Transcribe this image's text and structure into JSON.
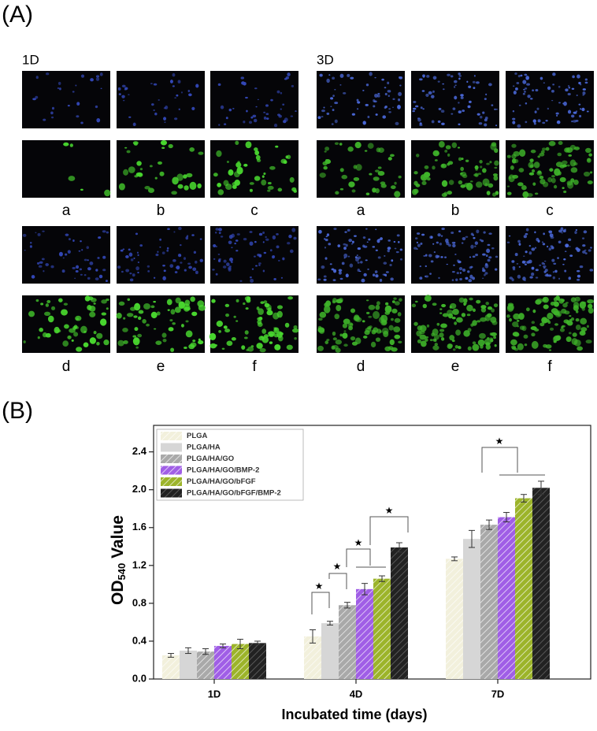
{
  "panel_a": {
    "label": "(A)",
    "groups": [
      {
        "title": "1D",
        "labels": [
          "a",
          "b",
          "c",
          "d",
          "e",
          "f"
        ]
      },
      {
        "title": "3D",
        "labels": [
          "a",
          "b",
          "c",
          "d",
          "e",
          "f"
        ]
      }
    ]
  },
  "chart_data": {
    "type": "bar",
    "panel_label": "(B)",
    "x_label": "Incubated time (days)",
    "y_label": [
      "OD",
      "540",
      " Value"
    ],
    "categories": [
      "1D",
      "4D",
      "7D"
    ],
    "series": [
      {
        "name": "PLGA",
        "color": "#f2f0dc",
        "hatch": true,
        "values": [
          0.25,
          0.45,
          1.27
        ],
        "errors": [
          0.02,
          0.07,
          0.02
        ]
      },
      {
        "name": "PLGA/HA",
        "color": "#d6d6d6",
        "hatch": false,
        "values": [
          0.3,
          0.59,
          1.48
        ],
        "errors": [
          0.03,
          0.02,
          0.09
        ]
      },
      {
        "name": "PLGA/HA/GO",
        "color": "#a9a9a9",
        "hatch": true,
        "values": [
          0.29,
          0.78,
          1.63
        ],
        "errors": [
          0.03,
          0.03,
          0.05
        ]
      },
      {
        "name": "PLGA/HA/GO/BMP-2",
        "color": "#a05ee6",
        "hatch": true,
        "values": [
          0.35,
          0.95,
          1.71
        ],
        "errors": [
          0.02,
          0.06,
          0.05
        ]
      },
      {
        "name": "PLGA/HA/GO/bFGF",
        "color": "#9cb42a",
        "hatch": true,
        "values": [
          0.37,
          1.06,
          1.91
        ],
        "errors": [
          0.05,
          0.03,
          0.04
        ]
      },
      {
        "name": "PLGA/HA/GO/bFGF/BMP-2",
        "color": "#222222",
        "hatch": true,
        "values": [
          0.38,
          1.39,
          2.02
        ],
        "errors": [
          0.02,
          0.05,
          0.07
        ]
      }
    ],
    "ylim": [
      0,
      2.68
    ],
    "yticks": [
      {
        "value": 0,
        "label": "0.0"
      },
      0.4,
      0.8,
      1.2,
      1.6,
      {
        "value": 2,
        "label": "2.0"
      },
      2.4
    ],
    "legend": "upper-left",
    "significance_marks": [
      "★",
      "★",
      "★",
      "★",
      "★"
    ]
  }
}
